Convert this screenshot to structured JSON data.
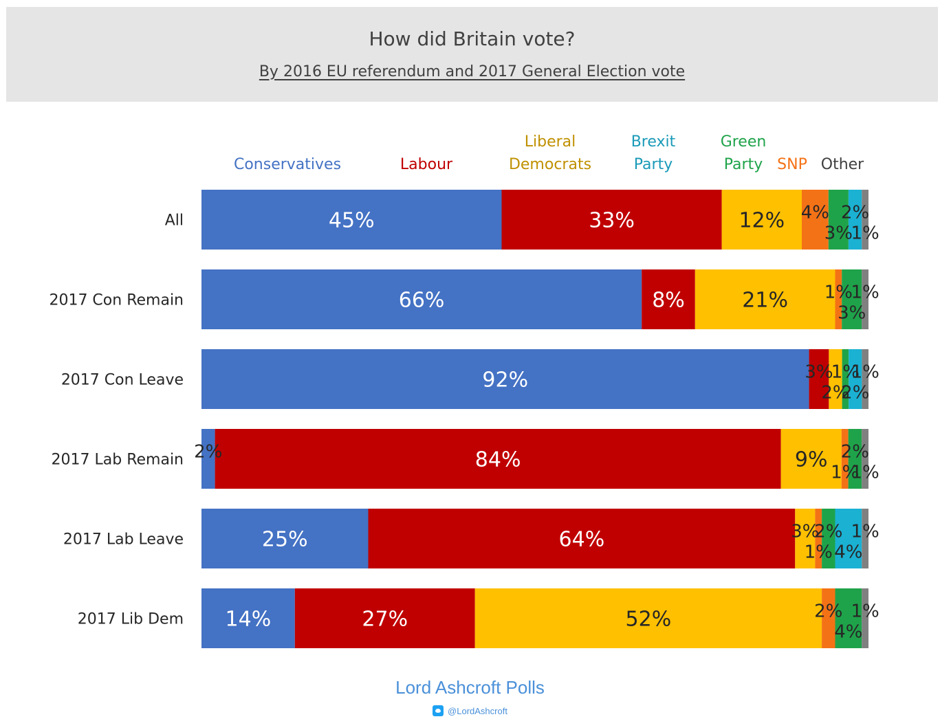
{
  "header": {
    "title": "How did Britain vote?",
    "subtitle": "By 2016 EU referendum and 2017 General Election vote"
  },
  "footer": {
    "brand": "Lord Ashcroft Polls",
    "handle": "@LordAshcroft",
    "twitter_icon": "twitter-icon"
  },
  "chart_data": {
    "type": "bar",
    "orientation": "horizontal-stacked-100",
    "title": "How did Britain vote?",
    "subtitle": "By 2016 EU referendum and 2017 General Election vote",
    "legend_position": "top",
    "categories": [
      "All",
      "2017 Con Remain",
      "2017 Con Leave",
      "2017 Lab Remain",
      "2017 Lab Leave",
      "2017 Lib Dem"
    ],
    "series": [
      {
        "name": "Conservatives",
        "legend": [
          "Conservatives"
        ],
        "color": "#4472c4",
        "label_color": "#4472c4",
        "values": [
          45,
          66,
          92,
          2,
          25,
          14
        ],
        "labels": [
          "45%",
          "66%",
          "92%",
          "2%",
          "25%",
          "14%"
        ]
      },
      {
        "name": "Labour",
        "legend": [
          "Labour"
        ],
        "color": "#c00000",
        "label_color": "#c00000",
        "values": [
          33,
          8,
          3,
          84,
          64,
          27
        ],
        "labels": [
          "33%",
          "8%",
          "3%",
          "84%",
          "64%",
          "27%"
        ]
      },
      {
        "name": "Liberal Democrats",
        "legend": [
          "Liberal",
          "Democrats"
        ],
        "color": "#ffc000",
        "label_color": "#bf9000",
        "values": [
          12,
          21,
          2,
          9,
          3,
          52
        ],
        "labels": [
          "12%",
          "21%",
          "2%",
          "9%",
          "3%",
          "52%"
        ]
      },
      {
        "name": "SNP",
        "legend": [
          "SNP"
        ],
        "color": "#f47216",
        "label_color": "#f47216",
        "values": [
          4,
          1,
          0,
          1,
          1,
          2
        ],
        "labels": [
          "4%",
          "1%",
          "",
          "1%",
          "1%",
          "2%"
        ]
      },
      {
        "name": "Green Party",
        "legend": [
          "Green",
          "Party"
        ],
        "color": "#1fa34a",
        "label_color": "#1fa34a",
        "values": [
          3,
          3,
          1,
          2,
          2,
          4
        ],
        "labels": [
          "3%",
          "3%",
          "1%",
          "2%",
          "2%",
          "4%"
        ]
      },
      {
        "name": "Brexit Party",
        "legend": [
          "Brexit",
          "Party"
        ],
        "color": "#1ab1d3",
        "label_color": "#1a9ab8",
        "values": [
          2,
          0,
          2,
          0,
          4,
          0
        ],
        "labels": [
          "2%",
          "",
          "2%",
          "",
          "4%",
          ""
        ]
      },
      {
        "name": "Other",
        "legend": [
          "Other"
        ],
        "color": "#808080",
        "label_color": "#404040",
        "values": [
          1,
          1,
          1,
          1,
          1,
          1
        ],
        "labels": [
          "1%",
          "1%",
          "1%",
          "1%",
          "1%",
          "1%"
        ]
      }
    ]
  }
}
